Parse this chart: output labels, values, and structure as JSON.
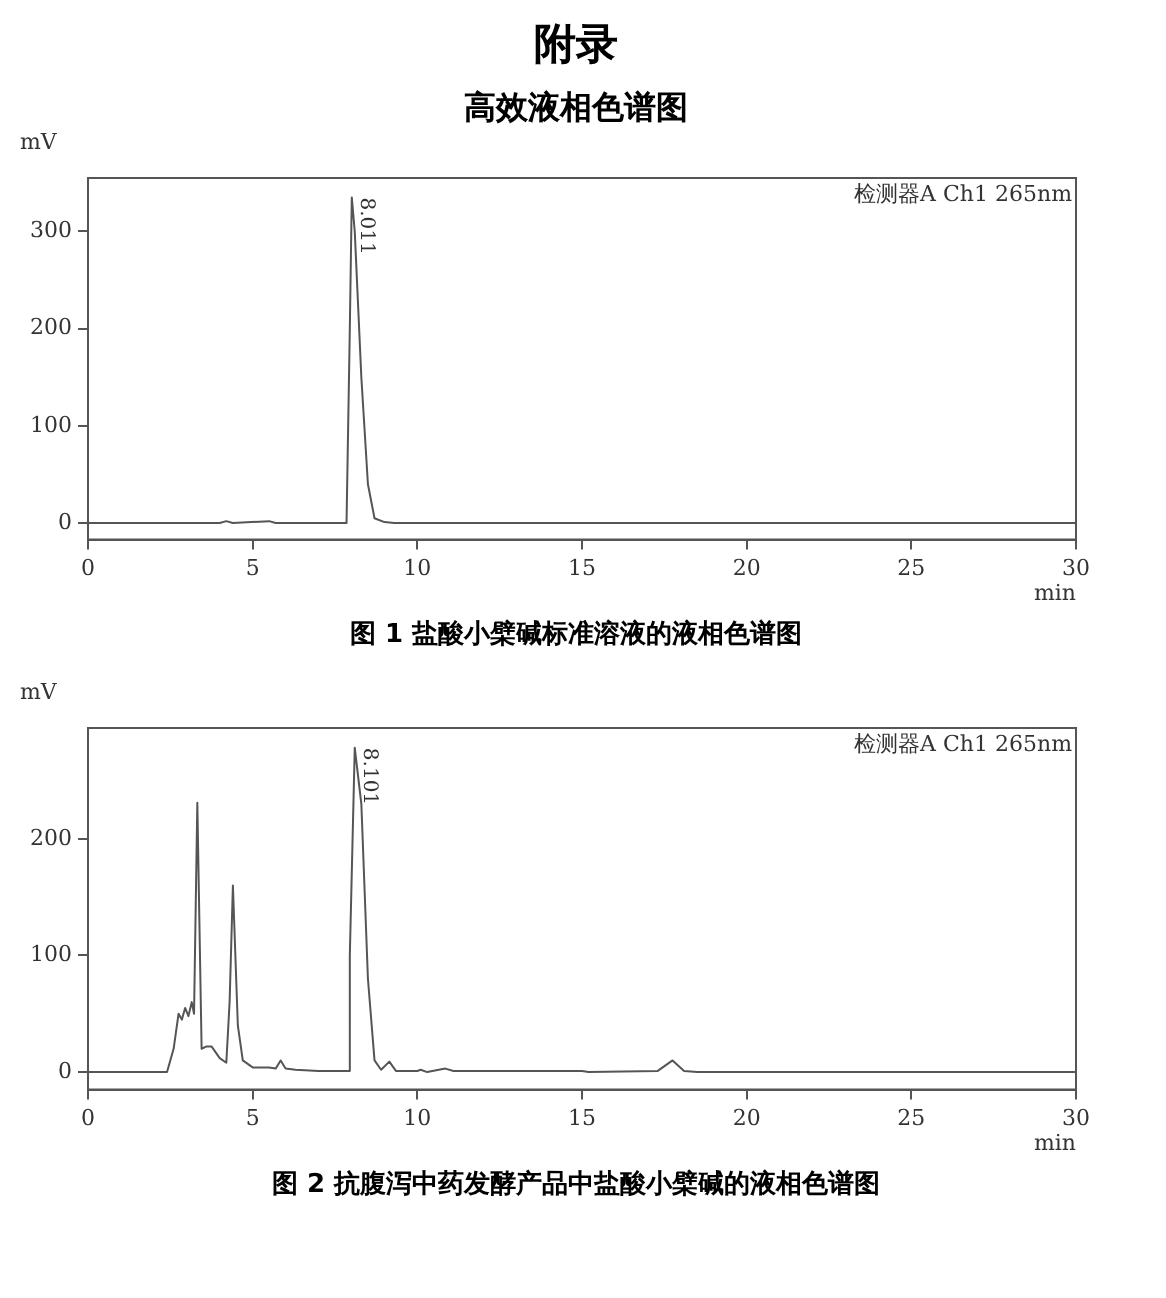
{
  "chart_data": [
    {
      "type": "line",
      "title": "附录",
      "subtitle": "高效液相色谱图",
      "xlabel": "min",
      "ylabel": "mV",
      "annotations": [
        "检测器A Ch1 265nm",
        {
          "text": "8.011",
          "x": 8.011,
          "y": 335
        },
        "图 1  盐酸小檗碱标准溶液的液相色谱图"
      ],
      "xlim": [
        0,
        30
      ],
      "xticks": [
        0,
        5,
        10,
        15,
        20,
        25,
        30
      ],
      "ylim": [
        -17,
        355
      ],
      "yticks": [
        0,
        100,
        200,
        300
      ],
      "series": [
        {
          "color": "#555555",
          "x": [
            0,
            4,
            4.2,
            4.4,
            5.5,
            5.7,
            7.85,
            7.95,
            8.01,
            8.1,
            8.3,
            8.5,
            8.7,
            9,
            9.3,
            30
          ],
          "values": [
            0,
            0,
            2,
            0,
            2,
            0,
            0,
            200,
            335,
            300,
            150,
            40,
            5,
            1,
            0,
            0
          ]
        }
      ]
    },
    {
      "type": "line",
      "xlabel": "min",
      "ylabel": "mV",
      "annotations": [
        "检测器A Ch1 265nm",
        {
          "text": "8.101",
          "x": 8.101,
          "y": 278
        },
        "图 2  抗腹泻中药发酵产品中盐酸小檗碱的液相色谱图"
      ],
      "xlim": [
        0,
        30
      ],
      "xticks": [
        0,
        5,
        10,
        15,
        20,
        25,
        30
      ],
      "ylim": [
        -15,
        295
      ],
      "yticks": [
        0,
        100,
        200
      ],
      "series": [
        {
          "color": "#555555",
          "x": [
            0,
            2.4,
            2.6,
            2.75,
            2.85,
            2.95,
            3.05,
            3.15,
            3.22,
            3.32,
            3.45,
            3.6,
            3.75,
            4.0,
            4.2,
            4.3,
            4.4,
            4.55,
            4.7,
            5.0,
            5.5,
            5.7,
            5.85,
            6.0,
            6.3,
            7,
            7.9,
            7.95,
            8.1,
            8.3,
            8.5,
            8.7,
            8.9,
            9.15,
            9.35,
            10,
            10.1,
            10.3,
            10.85,
            11.1,
            13,
            15,
            15.2,
            17.3,
            17.75,
            18.1,
            18.5,
            30
          ],
          "values": [
            0,
            0,
            20,
            50,
            45,
            55,
            48,
            60,
            50,
            231,
            20,
            22,
            22,
            12,
            8,
            60,
            160,
            40,
            10,
            4,
            4,
            3,
            10,
            3,
            2,
            1,
            1,
            100,
            278,
            230,
            80,
            10,
            2,
            9,
            1,
            1,
            2,
            0,
            3,
            1,
            1,
            1,
            0,
            1,
            10,
            1,
            0,
            0
          ]
        }
      ]
    }
  ]
}
